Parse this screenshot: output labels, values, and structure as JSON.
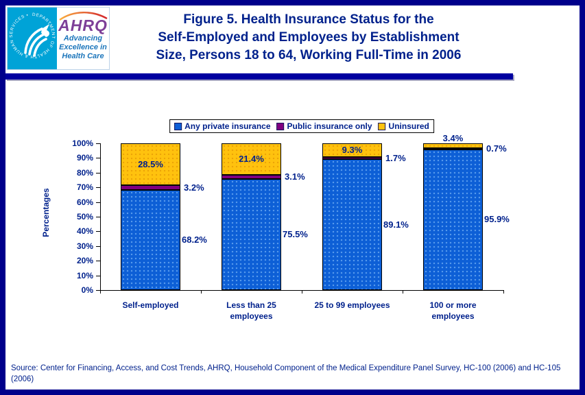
{
  "header": {
    "logo": {
      "acronym": "AHRQ",
      "tagline": "Advancing\nExcellence in\nHealth Care",
      "ring_text": "DEPARTMENT OF HEALTH & HUMAN SERVICES • USA"
    },
    "title": "Figure 5. Health Insurance Status for the\nSelf-Employed and Employees by Establishment\nSize, Persons 18 to 64, Working Full-Time in 2006"
  },
  "chart_data": {
    "type": "bar",
    "stacked": true,
    "title": "Figure 5. Health Insurance Status for the Self-Employed and Employees by Establishment Size, Persons 18 to 64, Working Full-Time in 2006",
    "xlabel": "",
    "ylabel": "Percentages",
    "ylim": [
      0,
      100
    ],
    "ytick_step": 10,
    "ytick_suffix": "%",
    "grid": false,
    "legend_position": "top",
    "categories": [
      "Self-employed",
      "Less than 25\nemployees",
      "25 to 99 employees",
      "100 or more\nemployees"
    ],
    "series": [
      {
        "name": "Any private insurance",
        "color": "#0D5FD6",
        "values": [
          68.2,
          75.5,
          89.1,
          95.9
        ]
      },
      {
        "name": "Public insurance only",
        "color": "#800080",
        "values": [
          3.2,
          3.1,
          1.7,
          0.7
        ]
      },
      {
        "name": "Uninsured",
        "color": "#FFC20E",
        "values": [
          28.5,
          21.4,
          9.3,
          3.4
        ]
      }
    ]
  },
  "footer": {
    "source": "Source: Center for Financing, Access, and Cost Trends, AHRQ, Household Component of the Medical Expenditure Panel Survey, HC-100 (2006) and HC-105 (2006)"
  },
  "colors": {
    "frame_border": "#00008B",
    "header_rule": "#0000A0",
    "title_text": "#00218C",
    "bar_blue": "#0D5FD6",
    "bar_purple": "#800080",
    "bar_yellow": "#FFC20E",
    "hhs_blue": "#00A3D7",
    "ahrq_purple": "#7D3F98",
    "tagline_blue": "#1B75BB",
    "swoosh_orange": "#F7941D"
  }
}
